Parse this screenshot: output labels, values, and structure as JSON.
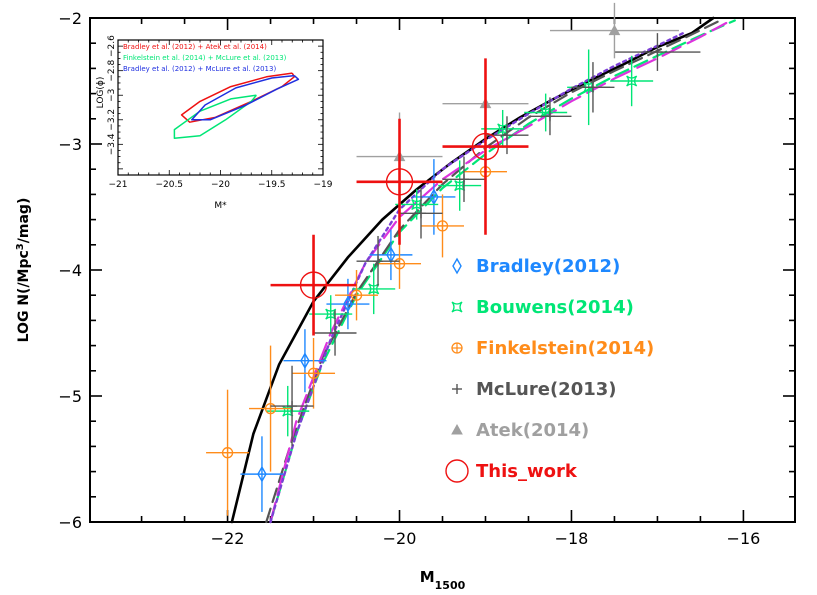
{
  "chart_data": {
    "type": "scatter",
    "title": "",
    "xlabel_main": "M",
    "xlabel_sub": "1500",
    "ylabel_parts": [
      "LOG N(/Mpc",
      "3",
      "/mag)"
    ],
    "xlim": [
      -23.6,
      -15.4
    ],
    "ylim": [
      -6,
      -2
    ],
    "x_ticks": [
      -22,
      -20,
      -18,
      -16
    ],
    "x_tick_labels": [
      "−22",
      "−20",
      "−18",
      "−16"
    ],
    "y_ticks": [
      -6,
      -5,
      -4,
      -3,
      -2
    ],
    "y_tick_labels": [
      "−6",
      "−5",
      "−4",
      "−3",
      "−2"
    ],
    "colors": {
      "bradley": "#1e88ff",
      "bouwens": "#00e676",
      "finkelstein": "#ff8c1a",
      "mclure": "#555555",
      "atek": "#a0a0a0",
      "this_work": "#ee1111",
      "main_curve": "#000000",
      "fit_magenta": "#dd33dd",
      "fit_purple": "#7b3fd6"
    },
    "legend": [
      {
        "key": "bradley",
        "label": "Bradley(2012)",
        "marker": "diamond"
      },
      {
        "key": "bouwens",
        "label": "Bouwens(2014)",
        "marker": "square-star"
      },
      {
        "key": "finkelstein",
        "label": "Finkelstein(2014)",
        "marker": "circle-plus"
      },
      {
        "key": "mclure",
        "label": "McLure(2013)",
        "marker": "cross"
      },
      {
        "key": "atek",
        "label": "Atek(2014)",
        "marker": "triangle"
      },
      {
        "key": "this_work",
        "label": "This_work",
        "marker": "big-circle"
      }
    ],
    "series": [
      {
        "name": "Bradley(2012)",
        "key": "bradley",
        "points": [
          {
            "x": -21.6,
            "y": -5.62,
            "dx": 0.25,
            "dy": 0.3
          },
          {
            "x": -21.1,
            "y": -4.72,
            "dx": 0.25,
            "dy": 0.25
          },
          {
            "x": -20.6,
            "y": -4.27,
            "dx": 0.25,
            "dy": 0.2
          },
          {
            "x": -20.1,
            "y": -3.88,
            "dx": 0.25,
            "dy": 0.2
          },
          {
            "x": -19.6,
            "y": -3.42,
            "dx": 0.25,
            "dy": 0.3
          }
        ]
      },
      {
        "name": "Bouwens(2014)",
        "key": "bouwens",
        "points": [
          {
            "x": -21.3,
            "y": -5.12,
            "dx": 0.25,
            "dy": 0.2
          },
          {
            "x": -20.8,
            "y": -4.35,
            "dx": 0.25,
            "dy": 0.15
          },
          {
            "x": -20.3,
            "y": -4.15,
            "dx": 0.25,
            "dy": 0.2
          },
          {
            "x": -19.8,
            "y": -3.48,
            "dx": 0.25,
            "dy": 0.12
          },
          {
            "x": -19.3,
            "y": -3.33,
            "dx": 0.25,
            "dy": 0.2
          },
          {
            "x": -18.8,
            "y": -2.88,
            "dx": 0.25,
            "dy": 0.15
          },
          {
            "x": -18.3,
            "y": -2.75,
            "dx": 0.25,
            "dy": 0.15
          },
          {
            "x": -17.8,
            "y": -2.55,
            "dx": 0.25,
            "dy": 0.3
          },
          {
            "x": -17.3,
            "y": -2.5,
            "dx": 0.25,
            "dy": 0.2
          }
        ]
      },
      {
        "name": "Finkelstein(2014)",
        "key": "finkelstein",
        "points": [
          {
            "x": -22.0,
            "y": -5.45,
            "dx": 0.25,
            "dy": 0.5
          },
          {
            "x": -21.5,
            "y": -5.1,
            "dx": 0.25,
            "dy": 0.5
          },
          {
            "x": -21.0,
            "y": -4.82,
            "dx": 0.25,
            "dy": 0.28
          },
          {
            "x": -20.5,
            "y": -4.2,
            "dx": 0.25,
            "dy": 0.2
          },
          {
            "x": -20.0,
            "y": -3.95,
            "dx": 0.25,
            "dy": 0.2
          },
          {
            "x": -19.5,
            "y": -3.65,
            "dx": 0.25,
            "dy": 0.25
          },
          {
            "x": -19.0,
            "y": -3.22,
            "dx": 0.25,
            "dy": 0.25
          }
        ]
      },
      {
        "name": "McLure(2013)",
        "key": "mclure",
        "points": [
          {
            "x": -21.25,
            "y": -5.08,
            "dx": 0.25,
            "dy": 0.32
          },
          {
            "x": -20.75,
            "y": -4.5,
            "dx": 0.25,
            "dy": 0.18
          },
          {
            "x": -20.25,
            "y": -3.93,
            "dx": 0.25,
            "dy": 0.2
          },
          {
            "x": -19.75,
            "y": -3.55,
            "dx": 0.25,
            "dy": 0.2
          },
          {
            "x": -19.25,
            "y": -3.28,
            "dx": 0.25,
            "dy": 0.18
          },
          {
            "x": -18.75,
            "y": -2.93,
            "dx": 0.25,
            "dy": 0.15
          },
          {
            "x": -18.25,
            "y": -2.78,
            "dx": 0.25,
            "dy": 0.15
          },
          {
            "x": -17.75,
            "y": -2.55,
            "dx": 0.25,
            "dy": 0.2
          },
          {
            "x": -17.0,
            "y": -2.27,
            "dx": 0.5,
            "dy": 0.15
          }
        ]
      },
      {
        "name": "Atek(2014)",
        "key": "atek",
        "points": [
          {
            "x": -20.0,
            "y": -3.1,
            "dx": 0.5,
            "dy": 0.35
          },
          {
            "x": -19.0,
            "y": -2.68,
            "dx": 0.5,
            "dy": 0.3
          },
          {
            "x": -17.5,
            "y": -2.1,
            "dx": 0.75,
            "dy": 0.22
          }
        ]
      },
      {
        "name": "This_work",
        "key": "this_work",
        "points": [
          {
            "x": -21.0,
            "y": -4.12,
            "dx": 0.5,
            "dy": 0.4
          },
          {
            "x": -20.0,
            "y": -3.3,
            "dx": 0.5,
            "dy": 0.5
          },
          {
            "x": -19.0,
            "y": -3.02,
            "dx": 0.5,
            "dy": 0.7
          }
        ]
      }
    ],
    "curves": [
      {
        "name": "main_fit",
        "key": "main_curve",
        "style": "solid",
        "width": 2.6,
        "points": [
          [
            -21.95,
            -6.0
          ],
          [
            -21.7,
            -5.3
          ],
          [
            -21.4,
            -4.75
          ],
          [
            -21.0,
            -4.25
          ],
          [
            -20.6,
            -3.9
          ],
          [
            -20.2,
            -3.6
          ],
          [
            -19.8,
            -3.36
          ],
          [
            -19.4,
            -3.15
          ],
          [
            -19.0,
            -2.96
          ],
          [
            -18.6,
            -2.79
          ],
          [
            -18.2,
            -2.64
          ],
          [
            -17.8,
            -2.5
          ],
          [
            -17.4,
            -2.37
          ],
          [
            -17.0,
            -2.23
          ],
          [
            -16.6,
            -2.12
          ],
          [
            -16.35,
            -2.0
          ]
        ]
      },
      {
        "name": "fit_green",
        "key": "bouwens",
        "style": "dash",
        "width": 2.2,
        "points": [
          [
            -21.5,
            -6.0
          ],
          [
            -21.2,
            -5.3
          ],
          [
            -20.9,
            -4.75
          ],
          [
            -20.5,
            -4.2
          ],
          [
            -20.0,
            -3.7
          ],
          [
            -19.5,
            -3.35
          ],
          [
            -19.0,
            -3.08
          ],
          [
            -18.5,
            -2.84
          ],
          [
            -18.0,
            -2.64
          ],
          [
            -17.5,
            -2.46
          ],
          [
            -17.0,
            -2.3
          ],
          [
            -16.5,
            -2.14
          ],
          [
            -16.1,
            -2.02
          ]
        ]
      },
      {
        "name": "fit_grey",
        "key": "mclure",
        "style": "dash",
        "width": 2.2,
        "points": [
          [
            -21.55,
            -6.0
          ],
          [
            -21.25,
            -5.35
          ],
          [
            -20.9,
            -4.7
          ],
          [
            -20.5,
            -4.18
          ],
          [
            -20.0,
            -3.68
          ],
          [
            -19.5,
            -3.32
          ],
          [
            -19.0,
            -3.03
          ],
          [
            -18.5,
            -2.79
          ],
          [
            -18.0,
            -2.59
          ],
          [
            -17.5,
            -2.42
          ],
          [
            -17.0,
            -2.26
          ],
          [
            -16.6,
            -2.13
          ],
          [
            -16.3,
            -2.03
          ]
        ]
      },
      {
        "name": "fit_magenta",
        "key": "fit_magenta",
        "style": "longdash",
        "width": 2.2,
        "points": [
          [
            -21.5,
            -6.0
          ],
          [
            -21.2,
            -5.2
          ],
          [
            -20.8,
            -4.5
          ],
          [
            -20.4,
            -3.95
          ],
          [
            -20.0,
            -3.58
          ],
          [
            -19.5,
            -3.28
          ],
          [
            -19.0,
            -3.05
          ],
          [
            -18.5,
            -2.86
          ],
          [
            -18.0,
            -2.66
          ],
          [
            -17.5,
            -2.48
          ],
          [
            -17.0,
            -2.32
          ],
          [
            -16.5,
            -2.15
          ],
          [
            -16.2,
            -2.04
          ]
        ]
      },
      {
        "name": "fit_purple",
        "key": "fit_purple",
        "style": "dot",
        "width": 2.4,
        "points": [
          [
            -21.5,
            -6.0
          ],
          [
            -21.2,
            -5.3
          ],
          [
            -20.8,
            -4.55
          ],
          [
            -20.4,
            -3.95
          ],
          [
            -20.0,
            -3.52
          ],
          [
            -19.5,
            -3.2
          ],
          [
            -19.0,
            -2.97
          ],
          [
            -18.5,
            -2.76
          ],
          [
            -18.0,
            -2.56
          ],
          [
            -17.5,
            -2.38
          ],
          [
            -17.0,
            -2.22
          ],
          [
            -16.7,
            -2.12
          ]
        ]
      }
    ],
    "inset": {
      "xlabel": "M*",
      "ylabel": "LOG(ϕ)",
      "xlim": [
        -21,
        -19
      ],
      "ylim": [
        -3.65,
        -2.55
      ],
      "x_ticks": [
        -21,
        -20.5,
        -20,
        -19.5,
        -19
      ],
      "x_tick_labels": [
        "−21",
        "−20.5",
        "−20",
        "−19.5",
        "−19"
      ],
      "y_ticks": [
        -3.4,
        -3.2,
        -3.0,
        -2.8,
        -2.6
      ],
      "y_tick_labels": [
        "−3.4",
        "−3.2",
        "−3",
        "−2.8",
        "−2.6"
      ],
      "legend": [
        {
          "key": "this_work",
          "label": "Bradley et al. (2012) + Atek et al. (2014)"
        },
        {
          "key": "bouwens",
          "label": "Finkelstein et al. (2014) + McLure et al. (2013)"
        },
        {
          "key": "inset_blue",
          "label": "Bradley et al. (2012) + McLure et al. (2013)"
        }
      ],
      "contours": [
        {
          "key": "this_work",
          "points": [
            [
              -19.3,
              -2.82
            ],
            [
              -19.55,
              -2.85
            ],
            [
              -19.9,
              -2.93
            ],
            [
              -20.2,
              -3.05
            ],
            [
              -20.38,
              -3.16
            ],
            [
              -20.3,
              -3.22
            ],
            [
              -20.05,
              -3.18
            ],
            [
              -19.7,
              -3.05
            ],
            [
              -19.4,
              -2.93
            ],
            [
              -19.28,
              -2.85
            ]
          ]
        },
        {
          "key": "bouwens",
          "points": [
            [
              -19.65,
              -3.0
            ],
            [
              -19.9,
              -3.03
            ],
            [
              -20.2,
              -3.13
            ],
            [
              -20.45,
              -3.28
            ],
            [
              -20.45,
              -3.35
            ],
            [
              -20.2,
              -3.33
            ],
            [
              -19.95,
              -3.2
            ],
            [
              -19.7,
              -3.05
            ]
          ]
        },
        {
          "key": "inset_blue",
          "points": [
            [
              -19.28,
              -2.84
            ],
            [
              -19.5,
              -2.86
            ],
            [
              -19.85,
              -2.94
            ],
            [
              -20.15,
              -3.08
            ],
            [
              -20.28,
              -3.2
            ],
            [
              -20.1,
              -3.2
            ],
            [
              -19.75,
              -3.08
            ],
            [
              -19.45,
              -2.95
            ],
            [
              -19.24,
              -2.87
            ]
          ]
        }
      ],
      "colors": {
        "inset_blue": "#1f2fe0"
      }
    }
  }
}
